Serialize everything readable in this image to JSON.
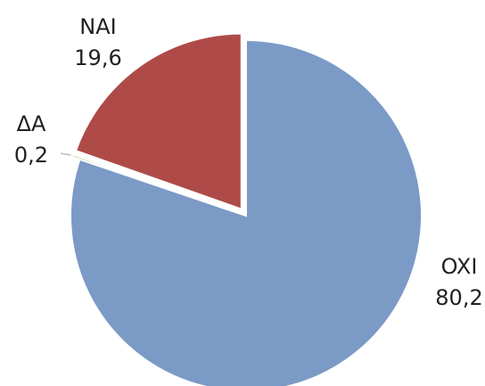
{
  "chart_data": {
    "type": "pie",
    "categories": [
      "OXI",
      "ΔA",
      "NAI"
    ],
    "values": [
      80.2,
      0.2,
      19.6
    ],
    "value_labels": [
      "80,2",
      "0,2",
      "19,6"
    ],
    "colors": [
      "#7b9ac6",
      "#9bbb59",
      "#ae4b48"
    ]
  }
}
